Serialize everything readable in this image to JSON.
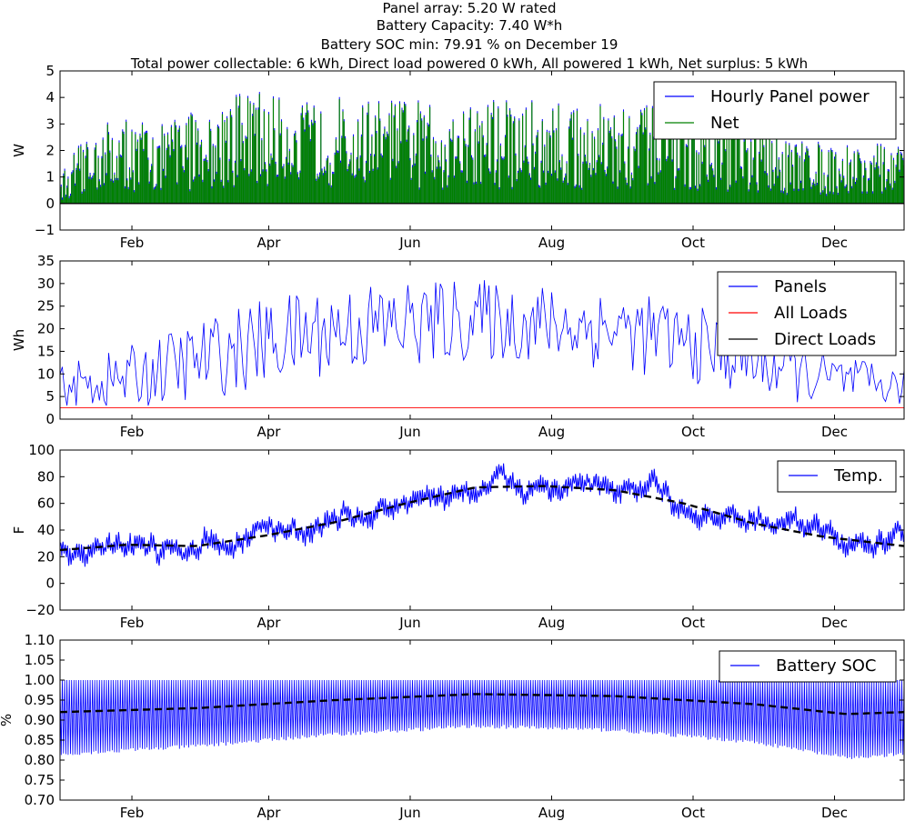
{
  "figure_title": [
    "Panel array: 5.20 W rated",
    "Battery Capacity: 7.40 W*h",
    "Battery SOC min: 79.91 % on December 19",
    "Total power collectable:  6 kWh, Direct load powered  0 kWh, All powered  1 kWh, Net surplus:  5 kWh"
  ],
  "colors": {
    "blue": "#0000ff",
    "green": "#008000",
    "red": "#ff0000",
    "black": "#000000"
  },
  "chart_data": [
    {
      "type": "area",
      "ylabel": "W",
      "ylim": [
        -1,
        5
      ],
      "yticks": [
        "−1",
        "0",
        "1",
        "2",
        "3",
        "4",
        "5"
      ],
      "xlim": [
        1,
        365
      ],
      "xticks": [
        {
          "label": "Feb",
          "day": 32
        },
        {
          "label": "Apr",
          "day": 91
        },
        {
          "label": "Jun",
          "day": 152
        },
        {
          "label": "Aug",
          "day": 213
        },
        {
          "label": "Oct",
          "day": 274
        },
        {
          "label": "Dec",
          "day": 335
        }
      ],
      "legend": {
        "loc": "upper right",
        "entries": [
          "Hourly Panel power",
          "Net"
        ]
      },
      "series": [
        {
          "name": "Hourly Panel power",
          "color": "blue"
        },
        {
          "name": "Net",
          "color": "green"
        }
      ],
      "envelope_days": [
        1,
        15,
        30,
        45,
        60,
        75,
        90,
        105,
        120,
        135,
        150,
        165,
        180,
        195,
        210,
        225,
        240,
        255,
        270,
        285,
        300,
        315,
        330,
        345,
        365
      ],
      "envelope_peak_W": [
        1.2,
        3.0,
        3.2,
        3.1,
        3.7,
        4.1,
        4.3,
        4.2,
        4.1,
        4.0,
        4.0,
        3.9,
        4.0,
        4.0,
        3.9,
        3.8,
        3.8,
        3.7,
        3.6,
        3.4,
        3.0,
        2.6,
        2.4,
        2.3,
        2.3
      ]
    },
    {
      "type": "line",
      "ylabel": "Wh",
      "ylim": [
        0,
        35
      ],
      "yticks": [
        "0",
        "5",
        "10",
        "15",
        "20",
        "25",
        "30",
        "35"
      ],
      "xlim": [
        1,
        365
      ],
      "xticks": [
        {
          "label": "Feb",
          "day": 32
        },
        {
          "label": "Apr",
          "day": 91
        },
        {
          "label": "Jun",
          "day": 152
        },
        {
          "label": "Aug",
          "day": 213
        },
        {
          "label": "Oct",
          "day": 274
        },
        {
          "label": "Dec",
          "day": 335
        }
      ],
      "legend": {
        "loc": "upper right",
        "entries": [
          "Panels",
          "All Loads",
          "Direct Loads"
        ]
      },
      "series": [
        {
          "name": "Panels",
          "color": "blue"
        },
        {
          "name": "All Loads",
          "color": "red",
          "value": 2.5
        },
        {
          "name": "Direct Loads",
          "color": "black",
          "value": 0
        }
      ],
      "envelope_days": [
        1,
        30,
        60,
        90,
        120,
        150,
        180,
        210,
        240,
        270,
        300,
        330,
        365
      ],
      "envelope_mean_Wh": [
        7,
        9,
        13,
        17,
        20,
        21,
        22,
        21,
        20,
        17,
        13,
        9,
        7
      ],
      "envelope_amp_Wh": [
        5,
        7,
        9,
        10,
        10,
        10,
        9,
        9,
        9,
        9,
        8,
        6,
        4
      ]
    },
    {
      "type": "line",
      "ylabel": "F",
      "ylim": [
        -20,
        100
      ],
      "yticks": [
        "−20",
        "0",
        "20",
        "40",
        "60",
        "80",
        "100"
      ],
      "xlim": [
        1,
        365
      ],
      "xticks": [
        {
          "label": "Feb",
          "day": 32
        },
        {
          "label": "Apr",
          "day": 91
        },
        {
          "label": "Jun",
          "day": 152
        },
        {
          "label": "Aug",
          "day": 213
        },
        {
          "label": "Oct",
          "day": 274
        },
        {
          "label": "Dec",
          "day": 335
        }
      ],
      "legend": {
        "loc": "upper right",
        "entries": [
          "Temp."
        ]
      },
      "series": [
        {
          "name": "Temp.",
          "color": "blue"
        },
        {
          "color": "black",
          "style": "dashed"
        }
      ],
      "trend_days": [
        1,
        30,
        60,
        90,
        120,
        150,
        180,
        210,
        240,
        270,
        300,
        330,
        365
      ],
      "trend_F": [
        25,
        29,
        28,
        36,
        46,
        60,
        72,
        73,
        70,
        60,
        45,
        35,
        28
      ],
      "hourly_amp_F": 14
    },
    {
      "type": "line",
      "ylabel": "%",
      "ylim": [
        0.7,
        1.1
      ],
      "yticks": [
        "0.70",
        "0.75",
        "0.80",
        "0.85",
        "0.90",
        "0.95",
        "1.00",
        "1.05",
        "1.10"
      ],
      "xlim": [
        1,
        365
      ],
      "xticks": [
        {
          "label": "Feb",
          "day": 32
        },
        {
          "label": "Apr",
          "day": 91
        },
        {
          "label": "Jun",
          "day": 152
        },
        {
          "label": "Aug",
          "day": 213
        },
        {
          "label": "Oct",
          "day": 274
        },
        {
          "label": "Dec",
          "day": 335
        }
      ],
      "legend": {
        "loc": "upper right",
        "entries": [
          "Battery SOC"
        ]
      },
      "series": [
        {
          "name": "Battery SOC",
          "color": "blue",
          "max": 1.0
        },
        {
          "color": "black",
          "style": "dashed"
        }
      ],
      "min_days": [
        1,
        60,
        120,
        180,
        240,
        300,
        340,
        365
      ],
      "soc_min": [
        0.81,
        0.83,
        0.86,
        0.88,
        0.87,
        0.84,
        0.8,
        0.81
      ],
      "trend_days": [
        1,
        60,
        120,
        180,
        240,
        300,
        340,
        365
      ],
      "trend_soc": [
        0.92,
        0.93,
        0.95,
        0.965,
        0.96,
        0.94,
        0.915,
        0.92
      ]
    }
  ]
}
